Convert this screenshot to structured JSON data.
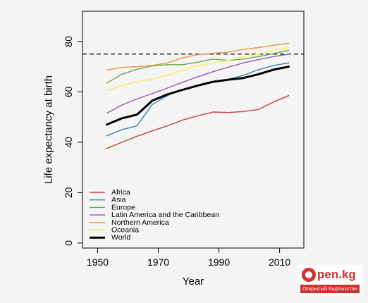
{
  "chart_data": {
    "type": "line",
    "title": "",
    "xlabel": "Year",
    "ylabel": "Life expectancy at birth",
    "xlim": [
      1945,
      2018
    ],
    "ylim": [
      -2,
      92
    ],
    "xticks": [
      1950,
      1970,
      1990,
      2010
    ],
    "yticks": [
      0,
      20,
      40,
      60,
      80
    ],
    "x": [
      1953,
      1958,
      1963,
      1968,
      1973,
      1978,
      1983,
      1988,
      1993,
      1998,
      2003,
      2008,
      2013
    ],
    "reference_line": {
      "y": 75,
      "style": "dashed"
    },
    "legend_position": "bottom-left",
    "series": [
      {
        "name": "Africa",
        "color": "#c8413b",
        "width": 1.4,
        "values": [
          37.5,
          40.0,
          42.4,
          44.5,
          46.5,
          48.8,
          50.5,
          52.0,
          51.8,
          52.2,
          53.0,
          56.0,
          58.5
        ]
      },
      {
        "name": "Asia",
        "color": "#3d7fa6",
        "width": 1.4,
        "values": [
          42.5,
          45.0,
          46.5,
          55.0,
          58.5,
          61.0,
          62.5,
          64.2,
          65.0,
          66.5,
          68.8,
          70.5,
          71.5
        ]
      },
      {
        "name": "Europe",
        "color": "#6aa84f",
        "width": 1.4,
        "values": [
          63.5,
          67.0,
          69.0,
          70.3,
          70.8,
          70.8,
          71.8,
          73.0,
          72.5,
          73.0,
          74.0,
          75.2,
          76.5
        ]
      },
      {
        "name": "Latin America and the Caribbean",
        "color": "#9a5aa8",
        "width": 1.4,
        "values": [
          51.5,
          54.8,
          57.2,
          59.3,
          61.5,
          63.8,
          66.0,
          68.0,
          69.8,
          71.5,
          72.8,
          74.0,
          75.0
        ]
      },
      {
        "name": "Northern America",
        "color": "#e8943a",
        "width": 1.4,
        "values": [
          68.7,
          69.7,
          70.0,
          70.5,
          71.5,
          73.5,
          74.8,
          75.3,
          75.8,
          76.8,
          77.6,
          78.5,
          79.3
        ]
      },
      {
        "name": "Oceania",
        "color": "#f5f05a",
        "width": 1.4,
        "values": [
          60.5,
          62.5,
          64.0,
          65.0,
          66.5,
          68.5,
          70.5,
          71.5,
          72.5,
          74.0,
          75.0,
          76.5,
          77.5
        ]
      },
      {
        "name": "World",
        "color": "#000000",
        "width": 3,
        "values": [
          47.0,
          49.5,
          51.0,
          56.5,
          59.0,
          60.8,
          62.5,
          64.0,
          64.8,
          65.5,
          67.0,
          68.8,
          70.0
        ]
      }
    ]
  },
  "watermark": {
    "brand": "pen.kg",
    "tagline": "Открытый Кыргызстан"
  }
}
